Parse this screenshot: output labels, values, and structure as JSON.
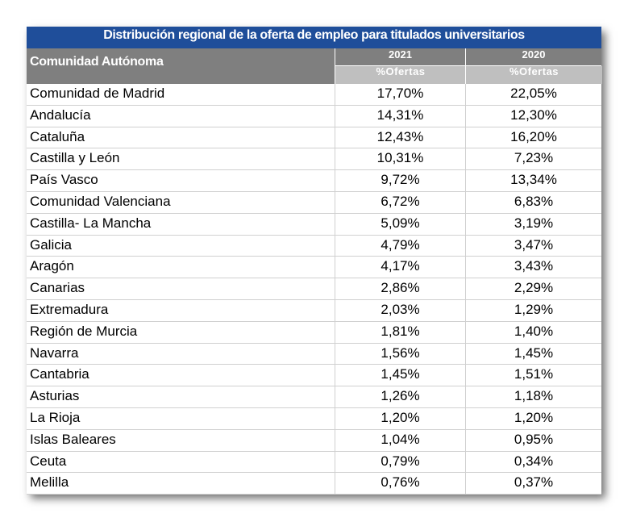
{
  "title": "Distribución regional de la oferta de empleo para titulados universitarios",
  "header": {
    "region_label": "Comunidad Autónoma",
    "years": [
      "2021",
      "2020"
    ],
    "metric_label": "%Ofertas"
  },
  "rows": [
    {
      "region": "Comunidad de Madrid",
      "y2021": "17,70%",
      "y2020": "22,05%"
    },
    {
      "region": "Andalucía",
      "y2021": "14,31%",
      "y2020": "12,30%"
    },
    {
      "region": "Cataluña",
      "y2021": "12,43%",
      "y2020": "16,20%"
    },
    {
      "region": "Castilla y León",
      "y2021": "10,31%",
      "y2020": "7,23%"
    },
    {
      "region": "País Vasco",
      "y2021": "9,72%",
      "y2020": "13,34%"
    },
    {
      "region": "Comunidad Valenciana",
      "y2021": "6,72%",
      "y2020": "6,83%"
    },
    {
      "region": "Castilla- La Mancha",
      "y2021": "5,09%",
      "y2020": "3,19%"
    },
    {
      "region": "Galicia",
      "y2021": "4,79%",
      "y2020": "3,47%"
    },
    {
      "region": "Aragón",
      "y2021": "4,17%",
      "y2020": "3,43%"
    },
    {
      "region": "Canarias",
      "y2021": "2,86%",
      "y2020": "2,29%"
    },
    {
      "region": "Extremadura",
      "y2021": "2,03%",
      "y2020": "1,29%"
    },
    {
      "region": "Región de Murcia",
      "y2021": "1,81%",
      "y2020": "1,40%"
    },
    {
      "region": "Navarra",
      "y2021": "1,56%",
      "y2020": "1,45%"
    },
    {
      "region": "Cantabria",
      "y2021": "1,45%",
      "y2020": "1,51%"
    },
    {
      "region": "Asturias",
      "y2021": "1,26%",
      "y2020": "1,18%"
    },
    {
      "region": "La Rioja",
      "y2021": "1,20%",
      "y2020": "1,20%"
    },
    {
      "region": "Islas Baleares",
      "y2021": "1,04%",
      "y2020": "0,95%"
    },
    {
      "region": "Ceuta",
      "y2021": "0,79%",
      "y2020": "0,34%"
    },
    {
      "region": "Melilla",
      "y2021": "0,76%",
      "y2020": "0,37%"
    }
  ],
  "colors": {
    "title_bg": "#1f4e9a",
    "header_dark": "#7f7f7f",
    "header_light": "#bfbfbf"
  }
}
